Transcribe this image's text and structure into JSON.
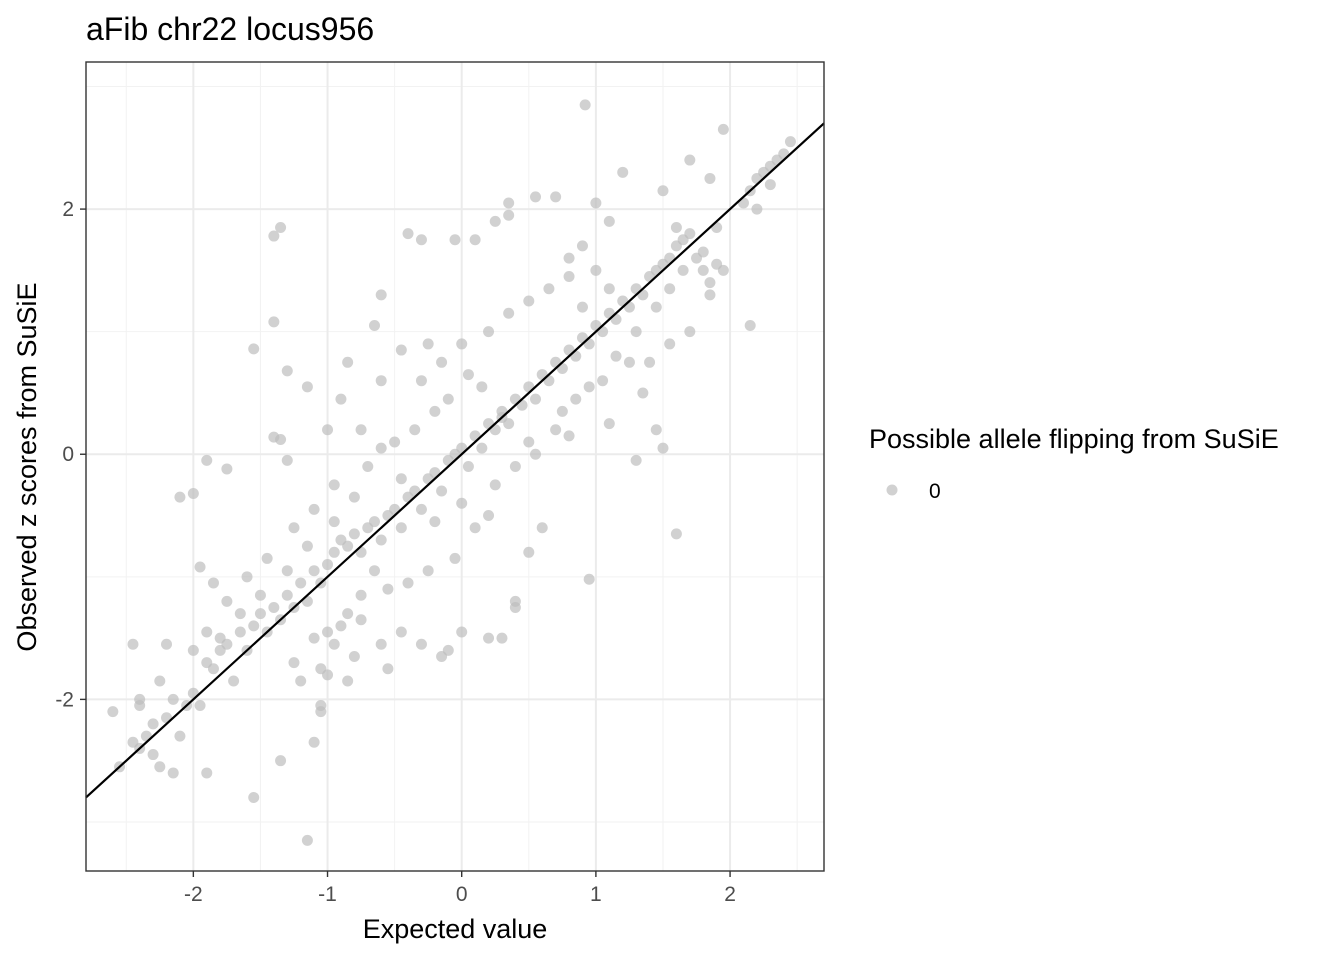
{
  "chart_data": {
    "type": "scatter",
    "title": "aFib chr22 locus956",
    "xlabel": "Expected value",
    "ylabel": "Observed z scores from SuSiE",
    "xlim": [
      -2.8,
      2.7
    ],
    "ylim": [
      -3.4,
      3.2
    ],
    "x_ticks": [
      -2,
      -1,
      0,
      1,
      2
    ],
    "x_tick_labels": [
      "-2",
      "-1",
      "0",
      "1",
      "2"
    ],
    "y_ticks": [
      -2,
      0,
      2
    ],
    "y_tick_labels": [
      "-2",
      "0",
      "2"
    ],
    "grid": true,
    "reference_line": {
      "slope": 1,
      "intercept": 0,
      "color": "#000000"
    },
    "legend": {
      "title": "Possible allele flipping from SuSiE",
      "placement": "right",
      "entries": [
        {
          "label": "0",
          "color": "#bebebe"
        }
      ]
    },
    "series": [
      {
        "label": "0",
        "color": "#bebebe",
        "opacity": 0.7,
        "points": [
          [
            -2.6,
            -2.1
          ],
          [
            -2.55,
            -2.55
          ],
          [
            -2.45,
            -2.35
          ],
          [
            -2.4,
            -2.0
          ],
          [
            -2.4,
            -2.4
          ],
          [
            -2.35,
            -2.3
          ],
          [
            -2.3,
            -2.45
          ],
          [
            -2.3,
            -2.2
          ],
          [
            -2.25,
            -2.55
          ],
          [
            -2.2,
            -2.15
          ],
          [
            -2.15,
            -2.0
          ],
          [
            -2.1,
            -2.3
          ],
          [
            -2.05,
            -2.05
          ],
          [
            -2.0,
            -1.95
          ],
          [
            -1.95,
            -2.05
          ],
          [
            -2.45,
            -1.55
          ],
          [
            -2.2,
            -1.55
          ],
          [
            -2.15,
            -2.6
          ],
          [
            -1.9,
            -2.6
          ],
          [
            -2.1,
            -0.35
          ],
          [
            -2.0,
            -0.32
          ],
          [
            -1.9,
            -0.05
          ],
          [
            -1.75,
            -0.12
          ],
          [
            -1.95,
            -0.92
          ],
          [
            -1.85,
            -1.05
          ],
          [
            -1.9,
            -1.7
          ],
          [
            -1.85,
            -1.75
          ],
          [
            -1.8,
            -1.6
          ],
          [
            -1.75,
            -1.55
          ],
          [
            -1.7,
            -1.85
          ],
          [
            -1.65,
            -1.45
          ],
          [
            -1.6,
            -1.6
          ],
          [
            -1.55,
            -1.4
          ],
          [
            -1.55,
            -2.8
          ],
          [
            -1.5,
            -1.3
          ],
          [
            -1.45,
            -1.45
          ],
          [
            -1.4,
            -1.25
          ],
          [
            -1.35,
            -1.35
          ],
          [
            -1.3,
            -1.15
          ],
          [
            -1.25,
            -1.25
          ],
          [
            -1.2,
            -1.05
          ],
          [
            -1.15,
            -1.2
          ],
          [
            -1.1,
            -0.95
          ],
          [
            -1.05,
            -1.05
          ],
          [
            -1.0,
            -0.9
          ],
          [
            -1.4,
            1.78
          ],
          [
            -1.35,
            1.85
          ],
          [
            -1.4,
            1.08
          ],
          [
            -1.55,
            0.86
          ],
          [
            -1.3,
            0.68
          ],
          [
            -1.4,
            0.14
          ],
          [
            -1.35,
            0.12
          ],
          [
            -1.3,
            -0.05
          ],
          [
            -1.35,
            -2.5
          ],
          [
            -1.15,
            -3.15
          ],
          [
            -1.1,
            -2.35
          ],
          [
            -1.05,
            -2.05
          ],
          [
            -1.2,
            -1.85
          ],
          [
            -1.25,
            -1.7
          ],
          [
            -1.05,
            -1.75
          ],
          [
            -1.0,
            -1.45
          ],
          [
            -0.95,
            -1.55
          ],
          [
            -0.9,
            -1.4
          ],
          [
            -0.85,
            -1.85
          ],
          [
            -0.8,
            -1.65
          ],
          [
            -0.95,
            -0.8
          ],
          [
            -0.9,
            -0.7
          ],
          [
            -0.85,
            -0.75
          ],
          [
            -0.8,
            -0.65
          ],
          [
            -0.75,
            -0.8
          ],
          [
            -0.7,
            -0.6
          ],
          [
            -0.65,
            -0.55
          ],
          [
            -0.6,
            -0.7
          ],
          [
            -0.55,
            -0.5
          ],
          [
            -0.5,
            -0.45
          ],
          [
            -0.45,
            -0.6
          ],
          [
            -0.4,
            -0.35
          ],
          [
            -0.35,
            -0.3
          ],
          [
            -0.3,
            -0.45
          ],
          [
            -0.25,
            -0.2
          ],
          [
            -0.2,
            -0.15
          ],
          [
            -0.15,
            -0.3
          ],
          [
            -0.1,
            -0.05
          ],
          [
            -0.05,
            0.0
          ],
          [
            0.0,
            0.05
          ],
          [
            0.05,
            -0.1
          ],
          [
            0.1,
            0.15
          ],
          [
            0.15,
            0.05
          ],
          [
            0.2,
            0.25
          ],
          [
            0.25,
            0.2
          ],
          [
            0.3,
            0.35
          ],
          [
            0.35,
            0.25
          ],
          [
            0.4,
            0.45
          ],
          [
            0.45,
            0.4
          ],
          [
            0.5,
            0.55
          ],
          [
            0.55,
            0.45
          ],
          [
            0.6,
            0.65
          ],
          [
            0.65,
            0.6
          ],
          [
            0.7,
            0.75
          ],
          [
            0.75,
            0.7
          ],
          [
            0.8,
            0.85
          ],
          [
            0.85,
            0.8
          ],
          [
            0.9,
            0.95
          ],
          [
            0.95,
            0.9
          ],
          [
            1.0,
            1.05
          ],
          [
            1.05,
            1.0
          ],
          [
            1.1,
            1.15
          ],
          [
            1.15,
            1.1
          ],
          [
            1.2,
            1.25
          ],
          [
            1.25,
            1.2
          ],
          [
            1.3,
            1.35
          ],
          [
            1.35,
            1.3
          ],
          [
            1.4,
            1.45
          ],
          [
            1.45,
            1.5
          ],
          [
            1.5,
            1.55
          ],
          [
            1.55,
            1.6
          ],
          [
            1.6,
            1.7
          ],
          [
            1.65,
            1.75
          ],
          [
            1.7,
            1.8
          ],
          [
            1.6,
            1.85
          ],
          [
            1.75,
            1.6
          ],
          [
            1.8,
            1.5
          ],
          [
            1.85,
            1.4
          ],
          [
            1.9,
            1.55
          ],
          [
            1.95,
            1.5
          ],
          [
            2.1,
            2.05
          ],
          [
            2.15,
            2.15
          ],
          [
            2.2,
            2.25
          ],
          [
            2.25,
            2.3
          ],
          [
            2.3,
            2.35
          ],
          [
            2.35,
            2.4
          ],
          [
            2.4,
            2.45
          ],
          [
            2.45,
            2.55
          ],
          [
            2.2,
            2.0
          ],
          [
            2.3,
            2.2
          ],
          [
            1.95,
            2.65
          ],
          [
            1.7,
            2.4
          ],
          [
            1.85,
            2.25
          ],
          [
            1.5,
            2.15
          ],
          [
            1.2,
            2.3
          ],
          [
            0.92,
            2.85
          ],
          [
            1.0,
            2.05
          ],
          [
            0.7,
            2.1
          ],
          [
            0.55,
            2.1
          ],
          [
            0.35,
            2.05
          ],
          [
            0.35,
            1.95
          ],
          [
            0.25,
            1.9
          ],
          [
            0.1,
            1.75
          ],
          [
            -0.05,
            1.75
          ],
          [
            -0.3,
            1.75
          ],
          [
            -0.4,
            1.8
          ],
          [
            0.8,
            1.6
          ],
          [
            0.9,
            1.7
          ],
          [
            1.1,
            1.9
          ],
          [
            1.0,
            1.5
          ],
          [
            -0.6,
            1.3
          ],
          [
            -0.65,
            1.05
          ],
          [
            -0.85,
            0.75
          ],
          [
            -0.9,
            0.45
          ],
          [
            -0.75,
            0.2
          ],
          [
            -1.0,
            0.2
          ],
          [
            -1.15,
            0.55
          ],
          [
            -0.6,
            0.6
          ],
          [
            -0.45,
            0.85
          ],
          [
            -0.25,
            0.9
          ],
          [
            0.3,
            0.3
          ],
          [
            0.5,
            0.1
          ],
          [
            0.75,
            0.35
          ],
          [
            1.05,
            0.6
          ],
          [
            1.25,
            0.75
          ],
          [
            1.35,
            0.5
          ],
          [
            1.45,
            0.2
          ],
          [
            1.5,
            0.05
          ],
          [
            1.6,
            -0.65
          ],
          [
            1.3,
            -0.05
          ],
          [
            1.1,
            0.25
          ],
          [
            0.95,
            -1.02
          ],
          [
            0.6,
            -0.6
          ],
          [
            0.5,
            -0.8
          ],
          [
            0.4,
            -1.2
          ],
          [
            0.4,
            -1.25
          ],
          [
            0.3,
            -1.5
          ],
          [
            0.2,
            -1.5
          ],
          [
            0.0,
            -1.45
          ],
          [
            -0.1,
            -1.6
          ],
          [
            -0.15,
            -1.65
          ],
          [
            -0.3,
            -1.55
          ],
          [
            -0.45,
            -1.45
          ],
          [
            -0.55,
            -1.75
          ],
          [
            -0.6,
            -1.55
          ],
          [
            -0.75,
            -1.35
          ],
          [
            -0.85,
            -1.3
          ],
          [
            -1.0,
            -1.8
          ],
          [
            -1.05,
            -2.1
          ],
          [
            -1.1,
            -1.5
          ],
          [
            2.15,
            1.05
          ],
          [
            1.85,
            1.3
          ],
          [
            1.7,
            1.0
          ],
          [
            1.4,
            0.75
          ],
          [
            1.55,
            0.9
          ],
          [
            0.2,
            -0.5
          ],
          [
            0.1,
            -0.6
          ],
          [
            -0.05,
            -0.85
          ],
          [
            -0.25,
            -0.95
          ],
          [
            -0.4,
            -1.05
          ],
          [
            -0.55,
            -1.1
          ],
          [
            -0.65,
            -0.95
          ],
          [
            -0.75,
            -1.15
          ],
          [
            0.15,
            0.55
          ],
          [
            0.05,
            0.65
          ],
          [
            -0.1,
            0.45
          ],
          [
            -0.2,
            0.35
          ],
          [
            -0.35,
            0.2
          ],
          [
            -0.5,
            0.1
          ],
          [
            -0.7,
            -0.1
          ],
          [
            -0.95,
            -0.25
          ],
          [
            -1.1,
            -0.45
          ],
          [
            -1.25,
            -0.6
          ],
          [
            -1.45,
            -0.85
          ],
          [
            -1.6,
            -1.0
          ],
          [
            -1.75,
            -1.2
          ],
          [
            -1.9,
            -1.45
          ],
          [
            -2.0,
            -1.6
          ],
          [
            -2.25,
            -1.85
          ],
          [
            -2.4,
            -2.05
          ],
          [
            0.7,
            0.2
          ],
          [
            0.85,
            0.45
          ],
          [
            0.95,
            0.55
          ],
          [
            1.15,
            0.8
          ],
          [
            1.3,
            1.0
          ],
          [
            1.45,
            1.2
          ],
          [
            1.55,
            1.35
          ],
          [
            1.65,
            1.5
          ],
          [
            1.8,
            1.65
          ],
          [
            1.9,
            1.85
          ],
          [
            -0.3,
            0.6
          ],
          [
            -0.15,
            0.75
          ],
          [
            0.0,
            0.9
          ],
          [
            0.2,
            1.0
          ],
          [
            0.35,
            1.15
          ],
          [
            0.5,
            1.25
          ],
          [
            0.65,
            1.35
          ],
          [
            0.8,
            1.45
          ],
          [
            0.9,
            1.2
          ],
          [
            1.1,
            1.35
          ],
          [
            -0.2,
            -0.55
          ],
          [
            0.0,
            -0.4
          ],
          [
            0.25,
            -0.25
          ],
          [
            0.4,
            -0.1
          ],
          [
            0.55,
            0.0
          ],
          [
            0.8,
            0.15
          ],
          [
            -0.6,
            0.05
          ],
          [
            -0.45,
            -0.2
          ],
          [
            -0.8,
            -0.35
          ],
          [
            -0.95,
            -0.55
          ],
          [
            -1.15,
            -0.75
          ],
          [
            -1.3,
            -0.95
          ],
          [
            -1.5,
            -1.15
          ],
          [
            -1.65,
            -1.3
          ],
          [
            -1.8,
            -1.5
          ]
        ]
      }
    ]
  }
}
